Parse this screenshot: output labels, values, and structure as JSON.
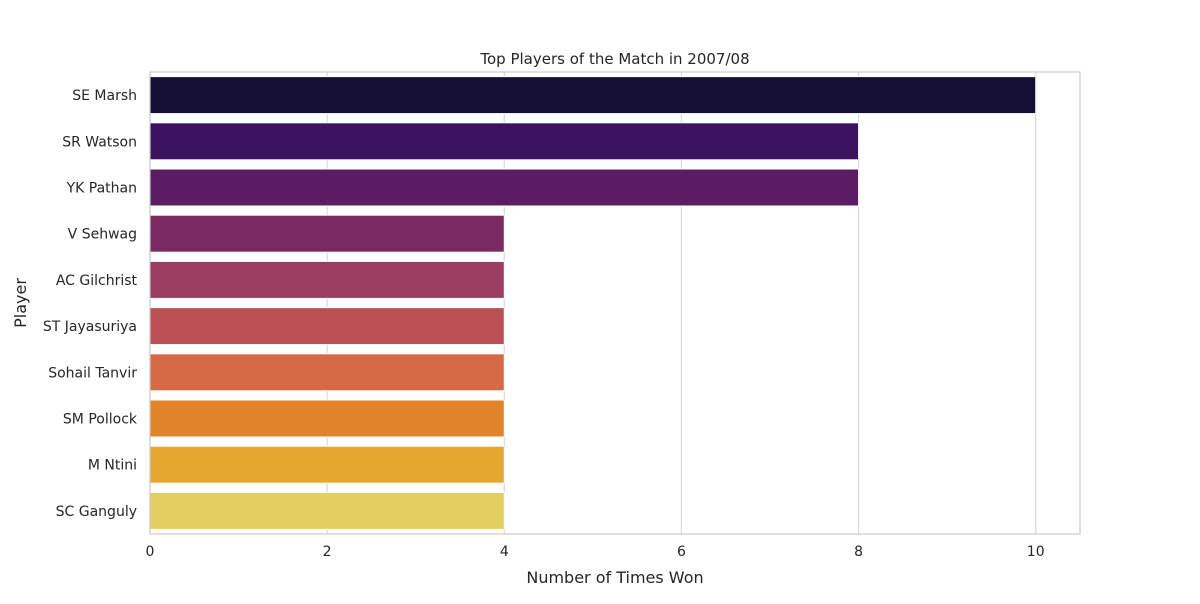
{
  "chart_data": {
    "type": "bar",
    "orientation": "horizontal",
    "title": "Top Players of the Match in 2007/08",
    "xlabel": "Number of Times Won",
    "ylabel": "Player",
    "xlim": [
      0,
      10.5
    ],
    "xticks": [
      0,
      2,
      4,
      6,
      8,
      10
    ],
    "grid": true,
    "categories": [
      "SE Marsh",
      "SR Watson",
      "YK Pathan",
      "V Sehwag",
      "AC Gilchrist",
      "ST Jayasuriya",
      "Sohail Tanvir",
      "SM Pollock",
      "M Ntini",
      "SC Ganguly"
    ],
    "values": [
      10,
      8,
      8,
      4,
      4,
      4,
      4,
      4,
      4,
      4
    ],
    "colors": [
      "#160f35",
      "#3b135e",
      "#5b1c64",
      "#7a2a63",
      "#9b3d5f",
      "#bd5055",
      "#d66a46",
      "#e18429",
      "#e4a72f",
      "#e3cf5f"
    ]
  }
}
